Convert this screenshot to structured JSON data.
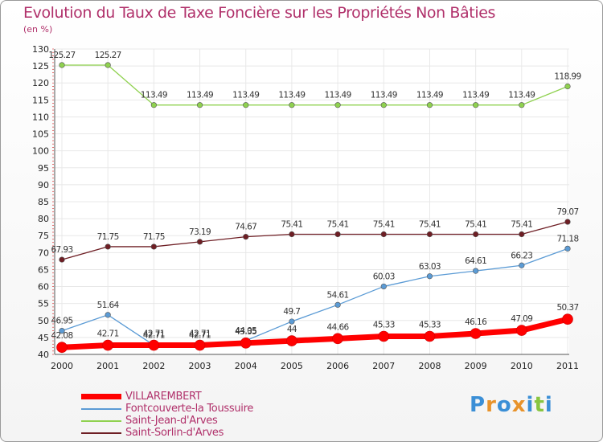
{
  "chart_data": {
    "type": "line",
    "title": "Evolution du Taux de Taxe Foncière sur les Propriétés Non Bâties",
    "unit_label": "(en %)",
    "x": [
      "2000",
      "2001",
      "2002",
      "2003",
      "2004",
      "2005",
      "2006",
      "2007",
      "2008",
      "2009",
      "2010",
      "2011"
    ],
    "ylim": [
      40,
      130
    ],
    "yticks": [
      40,
      45,
      50,
      55,
      60,
      65,
      70,
      75,
      80,
      85,
      90,
      95,
      100,
      105,
      110,
      115,
      120,
      125,
      130
    ],
    "series": [
      {
        "name": "Saint-Jean-d'Arves",
        "color": "#8fd14f",
        "values": [
          125.27,
          125.27,
          113.49,
          113.49,
          113.49,
          113.49,
          113.49,
          113.49,
          113.49,
          113.49,
          113.49,
          118.99
        ],
        "labels": [
          "125.27",
          "125.27",
          "113.49",
          "113.49",
          "113.49",
          "113.49",
          "113.49",
          "113.49",
          "113.49",
          "113.49",
          "113.49",
          "118.99"
        ]
      },
      {
        "name": "Saint-Sorlin-d'Arves",
        "color": "#6e1e24",
        "values": [
          67.93,
          71.75,
          71.75,
          73.19,
          74.67,
          75.41,
          75.41,
          75.41,
          75.41,
          75.41,
          75.41,
          79.07
        ],
        "labels": [
          "67.93",
          "71.75",
          "71.75",
          "73.19",
          "74.67",
          "75.41",
          "75.41",
          "75.41",
          "75.41",
          "75.41",
          "75.41",
          "79.07"
        ]
      },
      {
        "name": "Fontcouverte-la Toussuire",
        "color": "#5b9bd5",
        "values": [
          46.95,
          51.64,
          42.71,
          42.71,
          44.05,
          49.7,
          54.61,
          60.03,
          63.03,
          64.61,
          66.23,
          71.18
        ],
        "labels": [
          "46.95",
          "51.64",
          "42.71",
          "42.71",
          "44.05",
          "49.7",
          "54.61",
          "60.03",
          "63.03",
          "64.61",
          "66.23",
          "71.18"
        ]
      },
      {
        "name": "VILLAREMBERT",
        "color": "#ff0000",
        "values": [
          42.08,
          42.71,
          42.71,
          42.71,
          43.35,
          44,
          44.66,
          45.33,
          45.33,
          46.16,
          47.09,
          50.37
        ],
        "labels": [
          "42.08",
          "42.71",
          "42.71",
          "42.71",
          "43.35",
          "44",
          "44.66",
          "45.33",
          "45.33",
          "46.16",
          "47.09",
          "50.37"
        ]
      }
    ],
    "legend": [
      {
        "name": "VILLAREMBERT",
        "color": "#ff0000"
      },
      {
        "name": "Fontcouverte-la Toussuire",
        "color": "#5b9bd5"
      },
      {
        "name": "Saint-Jean-d'Arves",
        "color": "#8fd14f"
      },
      {
        "name": "Saint-Sorlin-d'Arves",
        "color": "#6e1e24"
      }
    ]
  },
  "brand": {
    "letters": [
      "P",
      "r",
      "o",
      "x",
      "i",
      "t",
      "i"
    ],
    "colors": [
      "#3b8fd6",
      "#e8932b",
      "#3b8fd6",
      "#e8932b",
      "#3b8fd6",
      "#88c540",
      "#3b8fd6"
    ]
  }
}
